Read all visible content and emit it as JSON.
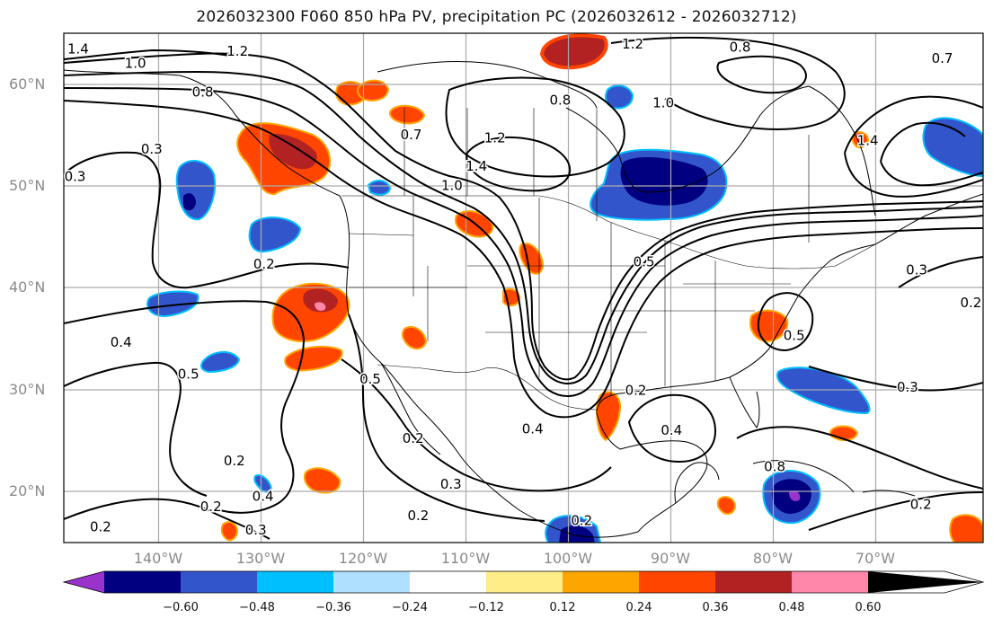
{
  "title": "2026032300 F060 850 hPa PV, precipitation PC (2026032612 - 2026032712)",
  "map": {
    "lon_range": [
      -150,
      -60
    ],
    "lat_range": [
      15,
      65
    ],
    "lat_labels": [
      {
        "lat": 60,
        "label": "60°N"
      },
      {
        "lat": 50,
        "label": "50°N"
      },
      {
        "lat": 40,
        "label": "40°N"
      },
      {
        "lat": 30,
        "label": "30°N"
      },
      {
        "lat": 20,
        "label": "20°N"
      }
    ],
    "lon_labels": [
      {
        "lon": -140,
        "label": "140°W"
      },
      {
        "lon": -130,
        "label": "130°W"
      },
      {
        "lon": -120,
        "label": "120°W"
      },
      {
        "lon": -110,
        "label": "110°W"
      },
      {
        "lon": -100,
        "label": "100°W"
      },
      {
        "lon": -90,
        "label": "90°W"
      },
      {
        "lon": -80,
        "label": "80°W"
      },
      {
        "lon": -70,
        "label": "70°W"
      }
    ],
    "contour_labels": [
      {
        "text": "1.4",
        "lon": -148.6,
        "lat": 63.4
      },
      {
        "text": "1.0",
        "lon": -143.0,
        "lat": 62.0
      },
      {
        "text": "1.2",
        "lon": -133.0,
        "lat": 63.2
      },
      {
        "text": "0.8",
        "lon": -136.4,
        "lat": 59.2
      },
      {
        "text": "0.3",
        "lon": -141.4,
        "lat": 53.6
      },
      {
        "text": "0.3",
        "lon": -148.9,
        "lat": 50.9
      },
      {
        "text": "0.7",
        "lon": -116.0,
        "lat": 55.0
      },
      {
        "text": "1.2",
        "lon": -107.8,
        "lat": 54.7
      },
      {
        "text": "1.4",
        "lon": -109.6,
        "lat": 51.9
      },
      {
        "text": "1.0",
        "lon": -112.0,
        "lat": 50.0
      },
      {
        "text": "0.8",
        "lon": -101.4,
        "lat": 58.4
      },
      {
        "text": "1.2",
        "lon": -94.3,
        "lat": 63.9
      },
      {
        "text": "0.8",
        "lon": -83.8,
        "lat": 63.6
      },
      {
        "text": "0.7",
        "lon": -64.0,
        "lat": 62.5
      },
      {
        "text": "1.0",
        "lon": -91.3,
        "lat": 58.1
      },
      {
        "text": "1.4",
        "lon": -71.3,
        "lat": 54.4
      },
      {
        "text": "0.2",
        "lon": -130.4,
        "lat": 42.3
      },
      {
        "text": "0.4",
        "lon": -144.4,
        "lat": 34.6
      },
      {
        "text": "0.5",
        "lon": -137.8,
        "lat": 31.5
      },
      {
        "text": "0.5",
        "lon": -93.2,
        "lat": 42.5
      },
      {
        "text": "0.2",
        "lon": -94.0,
        "lat": 29.9
      },
      {
        "text": "0.4",
        "lon": -90.5,
        "lat": 26.0
      },
      {
        "text": "0.5",
        "lon": -78.5,
        "lat": 35.3
      },
      {
        "text": "0.3",
        "lon": -67.4,
        "lat": 30.2
      },
      {
        "text": "0.3",
        "lon": -66.5,
        "lat": 41.7
      },
      {
        "text": "0.2",
        "lon": -61.2,
        "lat": 38.5
      },
      {
        "text": "0.5",
        "lon": -120.0,
        "lat": 31.0
      },
      {
        "text": "0.2",
        "lon": -133.3,
        "lat": 23.0
      },
      {
        "text": "0.4",
        "lon": -130.5,
        "lat": 19.5
      },
      {
        "text": "0.2",
        "lon": -135.6,
        "lat": 18.5
      },
      {
        "text": "0.3",
        "lon": -131.2,
        "lat": 16.2
      },
      {
        "text": "0.2",
        "lon": -146.4,
        "lat": 16.5
      },
      {
        "text": "0.3",
        "lon": -112.1,
        "lat": 20.7
      },
      {
        "text": "0.2",
        "lon": -115.3,
        "lat": 17.6
      },
      {
        "text": "0.2",
        "lon": -99.3,
        "lat": 17.1
      },
      {
        "text": "0.4",
        "lon": -104.1,
        "lat": 26.1
      },
      {
        "text": "0.2",
        "lon": -115.8,
        "lat": 25.2
      },
      {
        "text": "0.8",
        "lon": -80.4,
        "lat": 22.4
      },
      {
        "text": "0.2",
        "lon": -66.1,
        "lat": 18.7
      }
    ]
  },
  "colorbar": {
    "colors": [
      "#9933cc",
      "#000080",
      "#3355cc",
      "#00bfff",
      "#b0e0ff",
      "#ffffff",
      "#ffee88",
      "#ffa500",
      "#ff4500",
      "#b22222",
      "#ff88aa"
    ],
    "ticks": [
      "−0.60",
      "−0.48",
      "−0.36",
      "−0.24",
      "−0.12",
      "0.12",
      "0.24",
      "0.36",
      "0.48",
      "0.60"
    ]
  }
}
